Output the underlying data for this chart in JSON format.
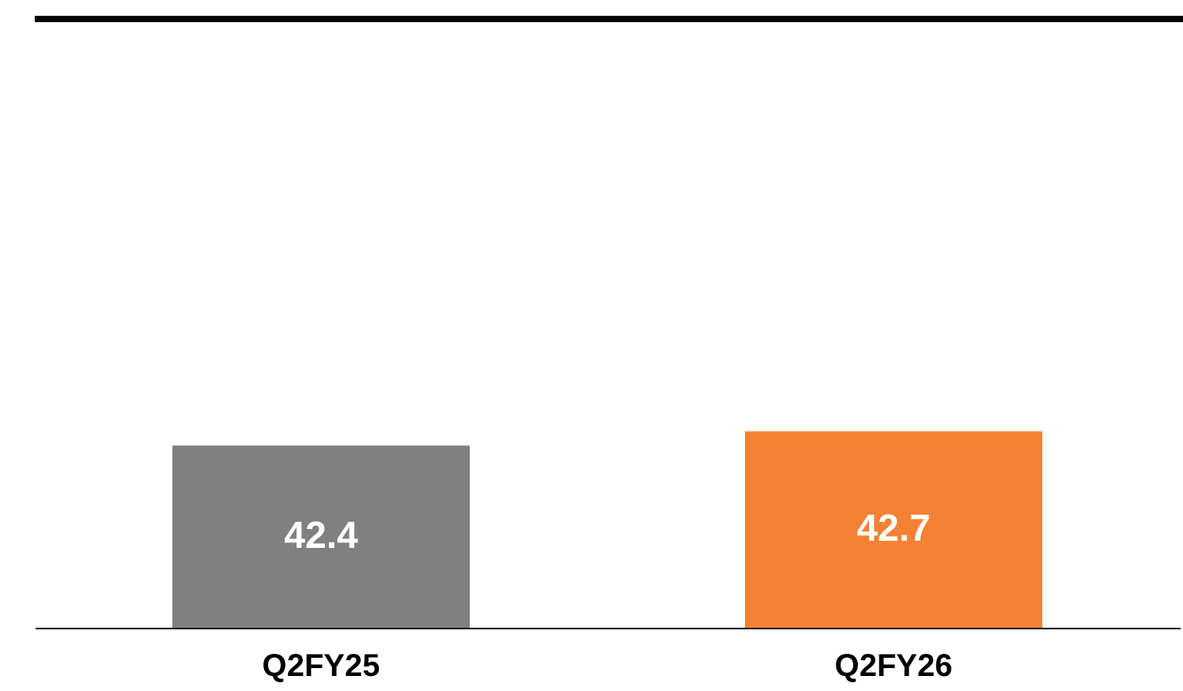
{
  "chart_data": {
    "type": "bar",
    "categories": [
      "Q2FY25",
      "Q2FY26"
    ],
    "values": [
      42.4,
      42.7
    ],
    "colors": [
      "#808080",
      "#f58232"
    ],
    "ylim": [
      38.6,
      51.3
    ],
    "data_labels": true,
    "grid": false,
    "tick_labels": "x"
  }
}
